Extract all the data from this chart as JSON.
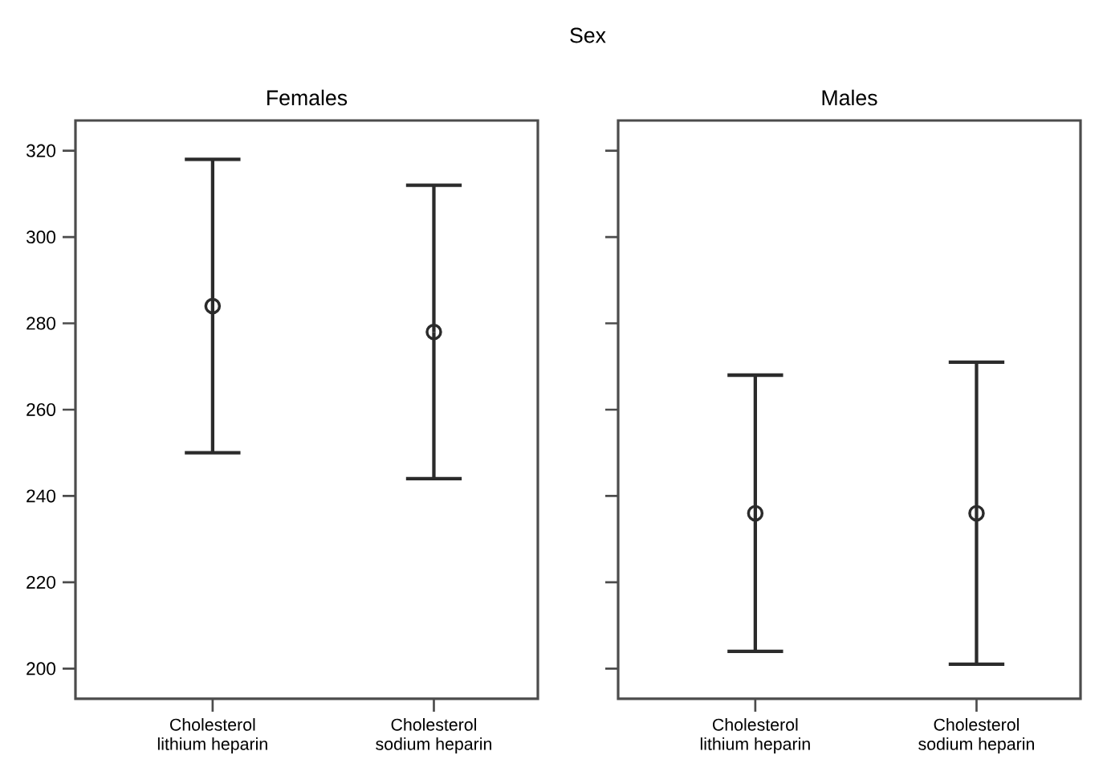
{
  "chart_data": [
    {
      "type": "scatter",
      "title": "Females",
      "annotations": [
        "Sex"
      ],
      "categories": [
        "Cholesterol\nlithium heparin",
        "Cholesterol\nsodium heparin"
      ],
      "values": [
        284,
        278
      ],
      "errors": [
        34,
        34
      ],
      "color": "#2b2b2b",
      "marker": "circle",
      "ylim": [
        193,
        327
      ],
      "yticks": [
        200,
        220,
        240,
        260,
        280,
        300,
        320
      ],
      "grid": false
    },
    {
      "type": "scatter",
      "title": "Males",
      "categories": [
        "Cholesterol\nlithium heparin",
        "Cholesterol\nsodium heparin"
      ],
      "values": [
        236,
        236
      ],
      "errors": [
        32,
        35
      ],
      "color": "#2b2b2b",
      "marker": "circle",
      "ylim": [
        193,
        327
      ],
      "yticks": [
        200,
        220,
        240,
        260,
        280,
        300,
        320
      ],
      "grid": false,
      "tick_labels": "x"
    }
  ]
}
